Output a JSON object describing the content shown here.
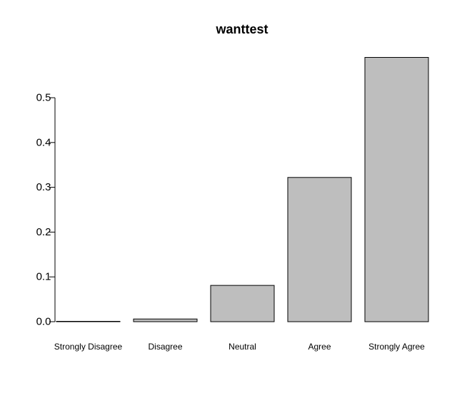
{
  "chart_data": {
    "type": "bar",
    "title": "wanttest",
    "xlabel": "",
    "ylabel": "",
    "categories": [
      "Strongly Disagree",
      "Disagree",
      "Neutral",
      "Agree",
      "Strongly Agree"
    ],
    "values": [
      0.0,
      0.006,
      0.081,
      0.322,
      0.59
    ],
    "yticks": [
      "0.0",
      "0.1",
      "0.2",
      "0.3",
      "0.4",
      "0.5"
    ],
    "ytick_values": [
      0.0,
      0.1,
      0.2,
      0.3,
      0.4,
      0.5
    ],
    "ylim": [
      0,
      0.59
    ],
    "grid": false,
    "bar_color": "#bebebe",
    "bar_edge_color": "#000000"
  }
}
